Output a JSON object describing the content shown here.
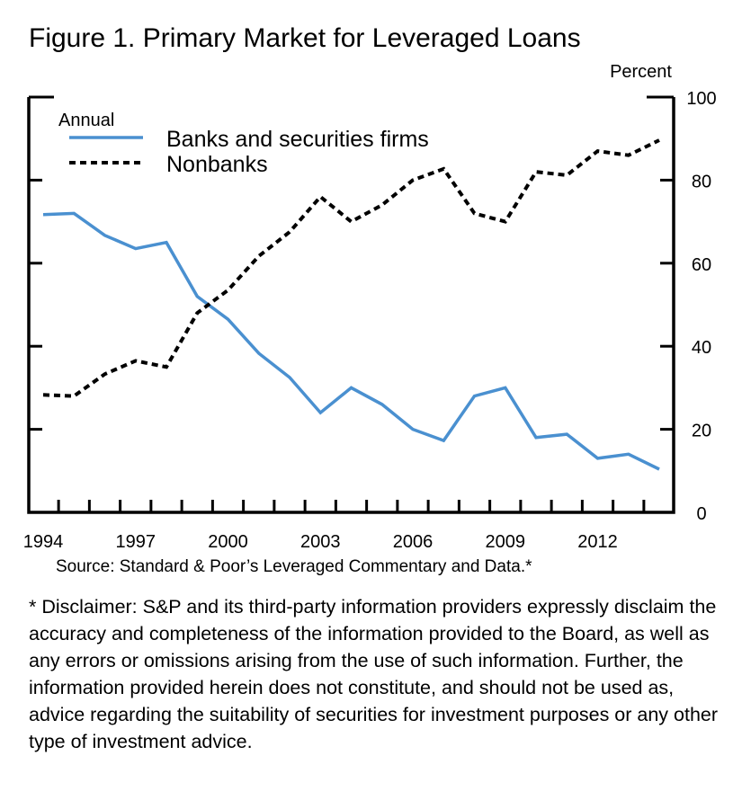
{
  "title": "Figure 1.  Primary Market for Leveraged Loans",
  "source": "Source:  Standard & Poor’s Leveraged Commentary and Data.*",
  "disclaimer": "* Disclaimer: S&P and its third-party information providers expressly disclaim the accuracy and completeness of the information provided to the Board, as well as any errors or omissions arising from the use of such information. Further, the information provided herein does not constitute, and should not be used as, advice regarding the suitability of securities for investment purposes or any other type of investment advice.",
  "chart_data": {
    "type": "line",
    "title": "Figure 1.  Primary Market for Leveraged Loans",
    "ylabel": "Percent",
    "legend_title": "Annual",
    "legend_position": "top-left",
    "grid": false,
    "x": [
      1994,
      1995,
      1996,
      1997,
      1998,
      1999,
      2000,
      2001,
      2002,
      2003,
      2004,
      2005,
      2006,
      2007,
      2008,
      2009,
      2010,
      2011,
      2012,
      2013,
      2014
    ],
    "xlim": [
      1993.5,
      2014.5
    ],
    "xticks": [
      "1994",
      "1997",
      "2000",
      "2003",
      "2006",
      "2009",
      "2012"
    ],
    "ylim": [
      0,
      100
    ],
    "yticks": [
      "0",
      "20",
      "40",
      "60",
      "80",
      "100"
    ],
    "series": [
      {
        "name": "Banks and securities firms",
        "color": "#4a90d0",
        "style": "solid",
        "values": [
          71.7,
          72,
          66.7,
          63.5,
          65,
          52,
          46.5,
          38.3,
          32.5,
          24,
          30,
          26,
          20,
          17.3,
          28,
          30,
          18,
          18.8,
          13,
          14,
          10.4
        ]
      },
      {
        "name": "Nonbanks",
        "color": "#000000",
        "style": "dashed",
        "values": [
          28.3,
          28,
          33.3,
          36.5,
          35,
          48,
          53.5,
          61.7,
          67.5,
          76,
          70,
          74,
          80,
          82.7,
          72,
          70,
          82,
          81.2,
          87,
          86,
          89.6
        ]
      }
    ]
  }
}
